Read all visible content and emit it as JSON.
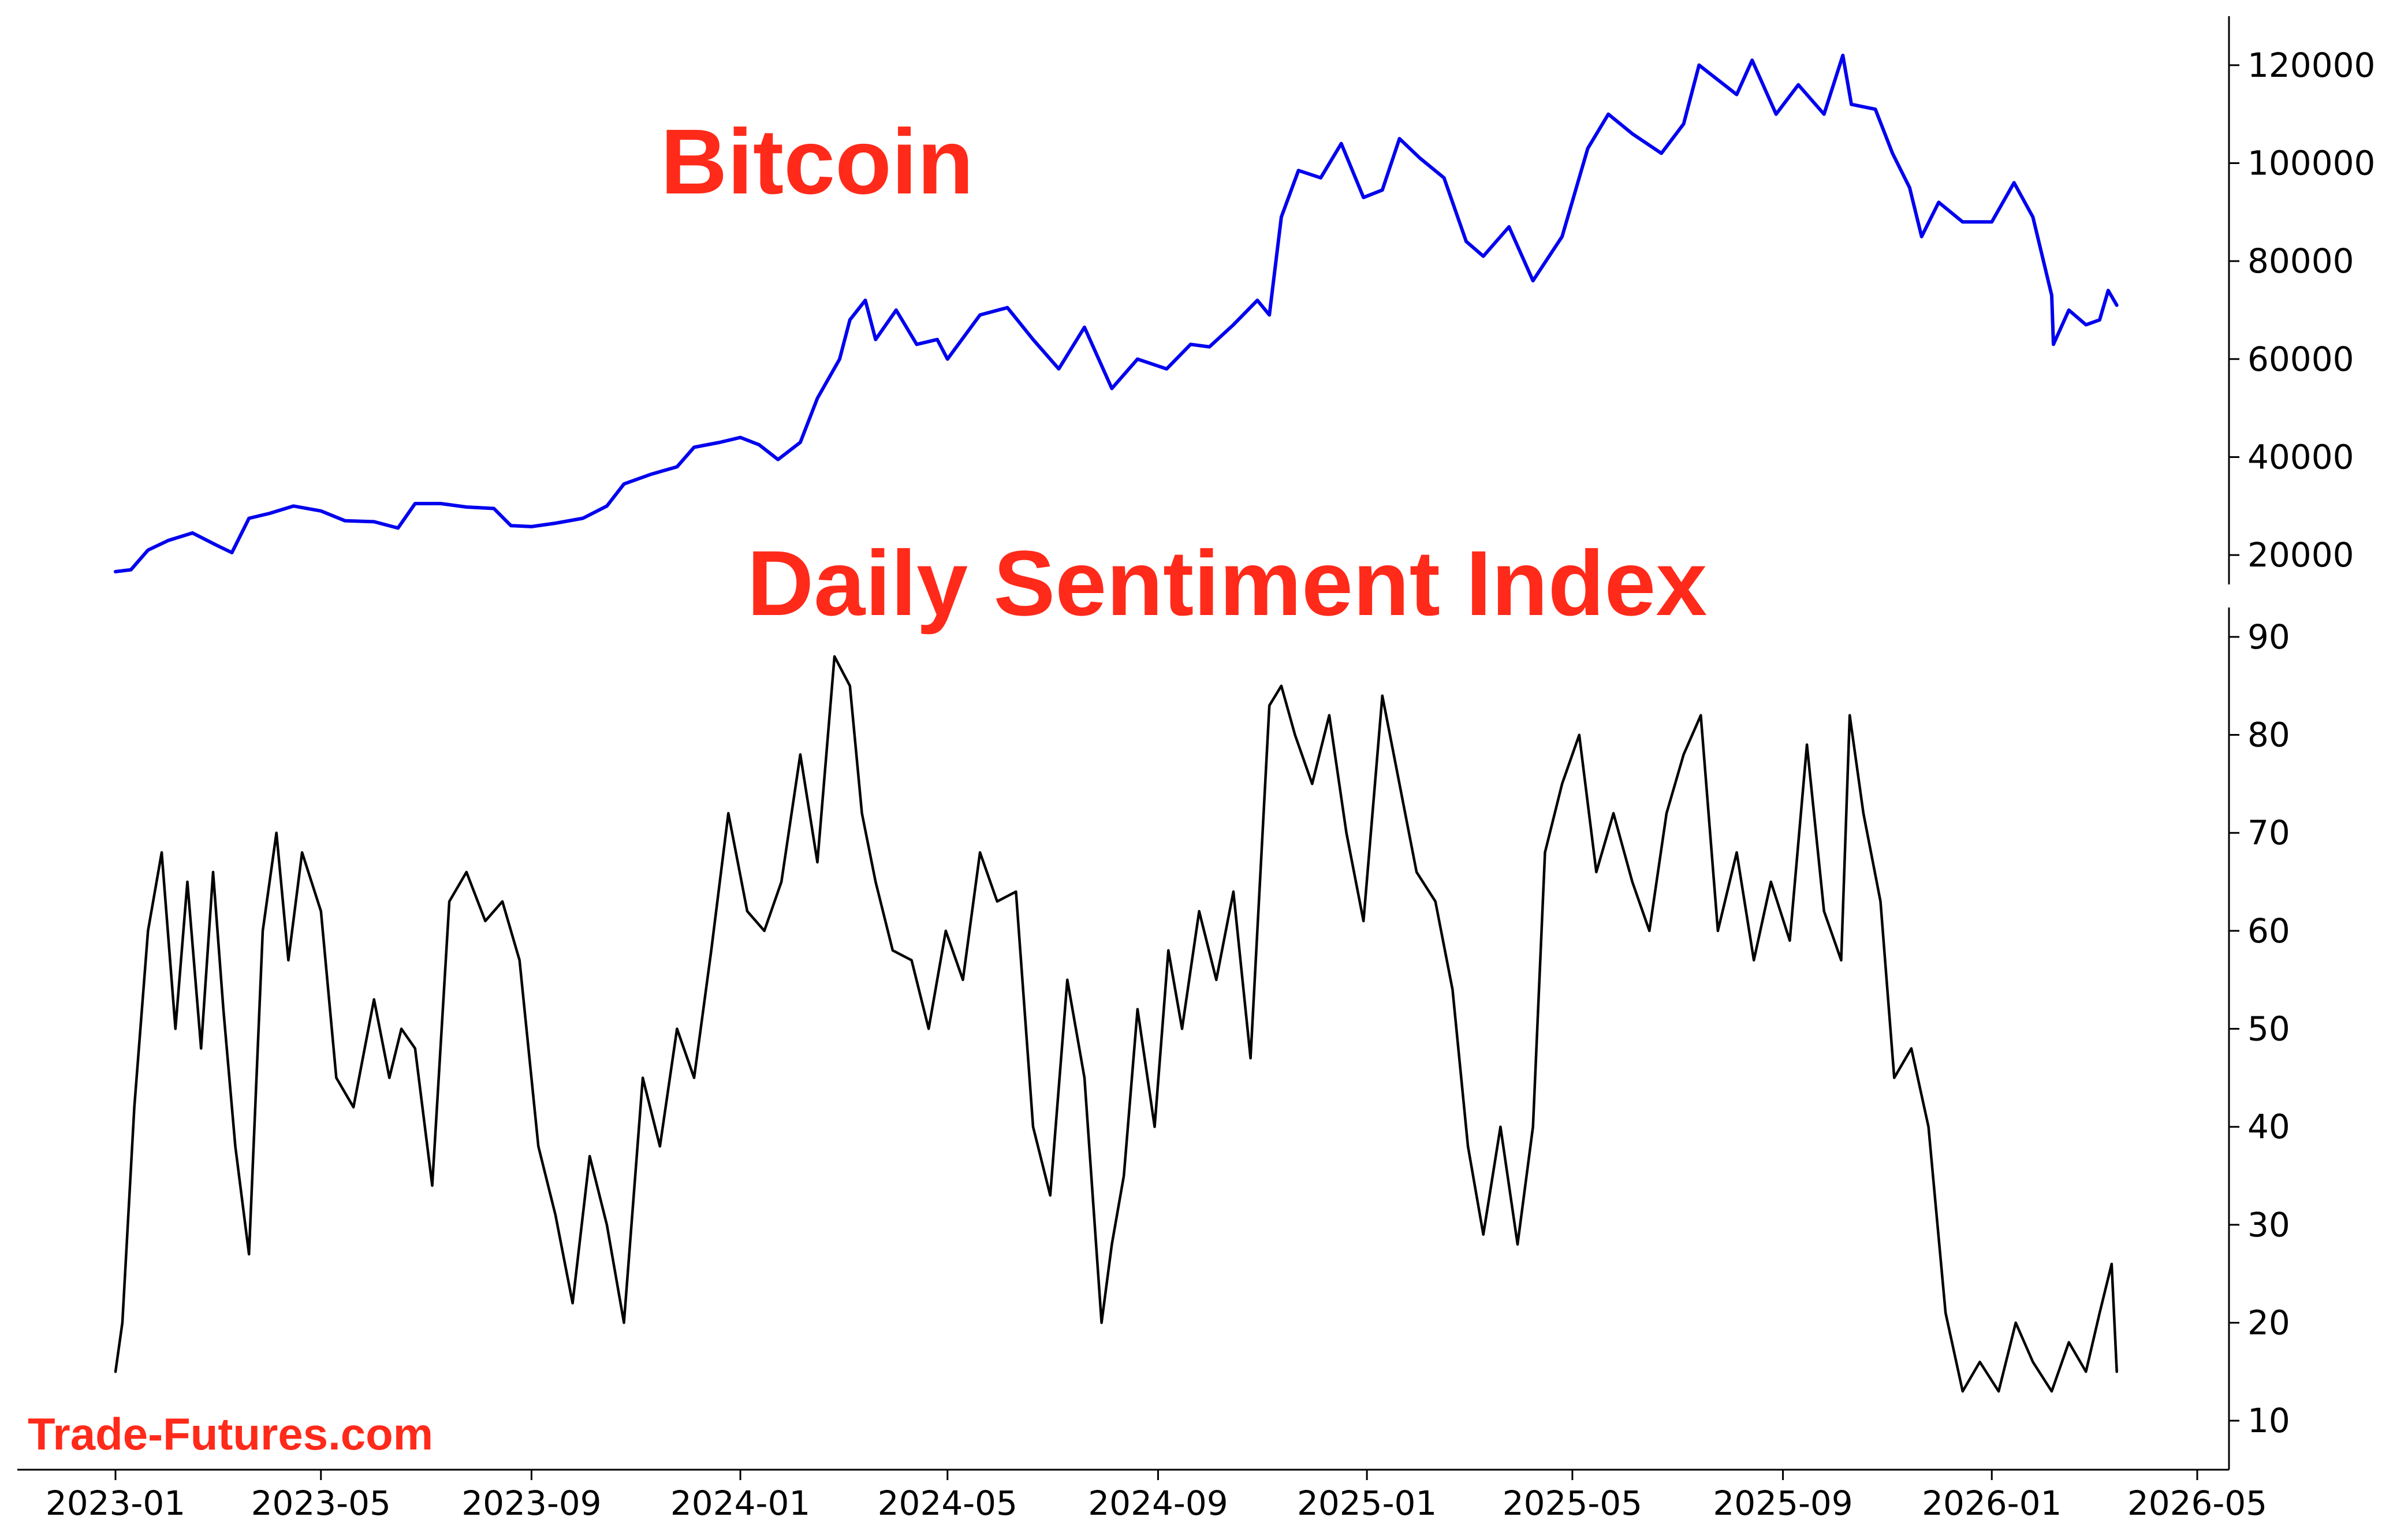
{
  "chart_data": [
    {
      "type": "line",
      "title": "Bitcoin",
      "title_color": "#ff2a1a",
      "line_color": "#0000ee",
      "y_axis_side": "right",
      "ylim": [
        14000,
        130000
      ],
      "y_ticks": [
        20000,
        40000,
        60000,
        80000,
        100000,
        120000
      ],
      "y_tick_labels": [
        "20000",
        "40000",
        "60000",
        "80000",
        "100000",
        "120000"
      ],
      "series": [
        {
          "x": [
            "2023-01-01",
            "2023-01-10",
            "2023-01-20",
            "2023-02-01",
            "2023-02-15",
            "2023-03-01",
            "2023-03-10",
            "2023-03-20",
            "2023-04-01",
            "2023-04-15",
            "2023-05-01",
            "2023-05-15",
            "2023-06-01",
            "2023-06-15",
            "2023-06-25",
            "2023-07-10",
            "2023-07-25",
            "2023-08-10",
            "2023-08-20",
            "2023-09-01",
            "2023-09-15",
            "2023-10-01",
            "2023-10-15",
            "2023-10-25",
            "2023-11-10",
            "2023-11-25",
            "2023-12-05",
            "2023-12-20",
            "2024-01-01",
            "2024-01-12",
            "2024-01-23",
            "2024-02-05",
            "2024-02-15",
            "2024-02-28",
            "2024-03-05",
            "2024-03-14",
            "2024-03-20",
            "2024-04-01",
            "2024-04-13",
            "2024-04-25",
            "2024-05-01",
            "2024-05-20",
            "2024-06-05",
            "2024-06-20",
            "2024-07-05",
            "2024-07-20",
            "2024-08-05",
            "2024-08-20",
            "2024-09-06",
            "2024-09-20",
            "2024-10-01",
            "2024-10-15",
            "2024-10-29",
            "2024-11-05",
            "2024-11-12",
            "2024-11-22",
            "2024-12-05",
            "2024-12-17",
            "2024-12-30",
            "2025-01-10",
            "2025-01-20",
            "2025-02-01",
            "2025-02-15",
            "2025-02-28",
            "2025-03-10",
            "2025-03-25",
            "2025-04-08",
            "2025-04-25",
            "2025-05-10",
            "2025-05-22",
            "2025-06-05",
            "2025-06-22",
            "2025-07-05",
            "2025-07-14",
            "2025-07-25",
            "2025-08-05",
            "2025-08-14",
            "2025-08-28",
            "2025-09-10",
            "2025-09-25",
            "2025-10-06",
            "2025-10-11",
            "2025-10-25",
            "2025-11-04",
            "2025-11-14",
            "2025-11-21",
            "2025-12-01",
            "2025-12-15",
            "2026-01-01",
            "2026-01-14",
            "2026-01-25",
            "2026-02-05",
            "2026-02-06",
            "2026-02-15",
            "2026-02-25",
            "2026-03-05",
            "2026-03-10",
            "2026-03-15"
          ],
          "values": [
            16600,
            17000,
            21000,
            23000,
            24500,
            22000,
            20500,
            27500,
            28500,
            30000,
            29000,
            27000,
            26800,
            25500,
            30500,
            30500,
            29800,
            29500,
            26000,
            25800,
            26500,
            27500,
            30000,
            34500,
            36500,
            38000,
            42000,
            43000,
            44000,
            42500,
            39500,
            43000,
            52000,
            60000,
            68000,
            72000,
            64000,
            70000,
            63000,
            64000,
            60000,
            69000,
            70500,
            64000,
            58000,
            66500,
            54000,
            60000,
            58000,
            63000,
            62500,
            67000,
            72000,
            69000,
            89000,
            98500,
            97000,
            104000,
            93000,
            94500,
            105000,
            101000,
            97000,
            84000,
            81000,
            87000,
            76000,
            85000,
            103000,
            110000,
            106000,
            102000,
            108000,
            120000,
            117000,
            114000,
            121000,
            110000,
            116000,
            110000,
            122000,
            112000,
            111000,
            102000,
            95000,
            85000,
            92000,
            88000,
            88000,
            96000,
            89000,
            73000,
            63000,
            70000,
            67000,
            68000,
            74000,
            71000
          ]
        }
      ]
    },
    {
      "type": "line",
      "title": "Daily Sentiment Index",
      "title_color": "#ff2a1a",
      "line_color": "#000000",
      "y_axis_side": "right",
      "ylim": [
        5,
        93
      ],
      "y_ticks": [
        10,
        20,
        30,
        40,
        50,
        60,
        70,
        80,
        90
      ],
      "y_tick_labels": [
        "10",
        "20",
        "30",
        "40",
        "50",
        "60",
        "70",
        "80",
        "90"
      ],
      "x_tick_labels": [
        "2023-01",
        "2023-05",
        "2023-09",
        "2024-01",
        "2024-05",
        "2024-09",
        "2025-01",
        "2025-05",
        "2025-09",
        "2026-01",
        "2026-05"
      ],
      "series": [
        {
          "x": [
            "2023-01-01",
            "2023-01-05",
            "2023-01-12",
            "2023-01-20",
            "2023-01-28",
            "2023-02-05",
            "2023-02-12",
            "2023-02-20",
            "2023-02-27",
            "2023-03-05",
            "2023-03-12",
            "2023-03-20",
            "2023-03-28",
            "2023-04-05",
            "2023-04-12",
            "2023-04-20",
            "2023-05-01",
            "2023-05-10",
            "2023-05-20",
            "2023-06-01",
            "2023-06-10",
            "2023-06-17",
            "2023-06-25",
            "2023-07-05",
            "2023-07-15",
            "2023-07-25",
            "2023-08-05",
            "2023-08-15",
            "2023-08-25",
            "2023-09-05",
            "2023-09-15",
            "2023-09-25",
            "2023-10-05",
            "2023-10-15",
            "2023-10-25",
            "2023-11-05",
            "2023-11-15",
            "2023-11-25",
            "2023-12-05",
            "2023-12-15",
            "2023-12-25",
            "2024-01-05",
            "2024-01-15",
            "2024-01-25",
            "2024-02-05",
            "2024-02-15",
            "2024-02-25",
            "2024-03-05",
            "2024-03-12",
            "2024-03-20",
            "2024-03-30",
            "2024-04-10",
            "2024-04-20",
            "2024-04-30",
            "2024-05-10",
            "2024-05-20",
            "2024-05-30",
            "2024-06-10",
            "2024-06-20",
            "2024-06-30",
            "2024-07-10",
            "2024-07-20",
            "2024-07-30",
            "2024-08-05",
            "2024-08-12",
            "2024-08-20",
            "2024-08-30",
            "2024-09-07",
            "2024-09-15",
            "2024-09-25",
            "2024-10-05",
            "2024-10-15",
            "2024-10-25",
            "2024-11-05",
            "2024-11-12",
            "2024-11-20",
            "2024-11-30",
            "2024-12-10",
            "2024-12-20",
            "2024-12-30",
            "2025-01-10",
            "2025-01-20",
            "2025-01-30",
            "2025-02-10",
            "2025-02-20",
            "2025-03-01",
            "2025-03-10",
            "2025-03-20",
            "2025-03-30",
            "2025-04-08",
            "2025-04-15",
            "2025-04-25",
            "2025-05-05",
            "2025-05-15",
            "2025-05-25",
            "2025-06-05",
            "2025-06-15",
            "2025-06-25",
            "2025-07-05",
            "2025-07-15",
            "2025-07-25",
            "2025-08-05",
            "2025-08-15",
            "2025-08-25",
            "2025-09-05",
            "2025-09-15",
            "2025-09-25",
            "2025-10-05",
            "2025-10-10",
            "2025-10-18",
            "2025-10-28",
            "2025-11-05",
            "2025-11-15",
            "2025-11-25",
            "2025-12-05",
            "2025-12-15",
            "2025-12-25",
            "2026-01-05",
            "2026-01-15",
            "2026-01-25",
            "2026-02-05",
            "2026-02-15",
            "2026-02-25",
            "2026-03-05",
            "2026-03-12",
            "2026-03-15"
          ],
          "values": [
            15,
            20,
            42,
            60,
            68,
            50,
            65,
            48,
            66,
            52,
            38,
            27,
            60,
            70,
            57,
            68,
            62,
            45,
            42,
            53,
            45,
            50,
            48,
            34,
            63,
            66,
            61,
            63,
            57,
            38,
            31,
            22,
            37,
            30,
            20,
            45,
            38,
            50,
            45,
            58,
            72,
            62,
            60,
            65,
            78,
            67,
            88,
            85,
            72,
            65,
            58,
            57,
            50,
            60,
            55,
            68,
            63,
            64,
            40,
            33,
            55,
            45,
            20,
            28,
            35,
            52,
            40,
            58,
            50,
            62,
            55,
            64,
            47,
            83,
            85,
            80,
            75,
            82,
            70,
            61,
            84,
            75,
            66,
            63,
            54,
            38,
            29,
            40,
            28,
            40,
            68,
            75,
            80,
            66,
            72,
            65,
            60,
            72,
            78,
            82,
            60,
            68,
            57,
            65,
            59,
            79,
            62,
            57,
            82,
            72,
            63,
            45,
            48,
            40,
            21,
            13,
            16,
            13,
            20,
            16,
            13,
            18,
            15,
            21,
            26,
            15
          ]
        }
      ]
    }
  ],
  "watermark": {
    "text": "Trade-Futures.com",
    "color": "#ff2a1a"
  }
}
